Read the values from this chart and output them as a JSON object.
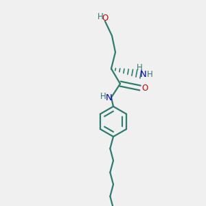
{
  "bg_color": "#f0f0f0",
  "bond_color": "#2d7a6e",
  "O_color": "#cc0000",
  "N_color": "#0000cc",
  "line_width": 1.6,
  "fig_size": [
    3.0,
    3.0
  ],
  "dpi": 100,
  "HO_label": "HO",
  "NH2_H1": "H",
  "NH2_N": "N",
  "NH2_H2": "H",
  "amide_NH_H": "H",
  "amide_NH_N": "N",
  "carbonyl_O": "O"
}
